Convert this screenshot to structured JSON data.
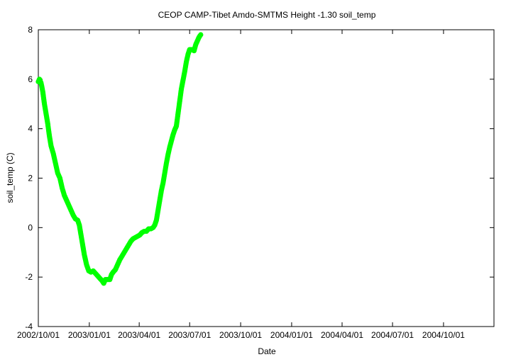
{
  "chart_data": {
    "type": "scatter",
    "title": "CEOP CAMP-Tibet Amdo-SMTMS Height -1.30 soil_temp",
    "xlabel": "Date",
    "ylabel": "soil_temp (C)",
    "xlim": [
      "2002/10/01",
      "2004/12/31"
    ],
    "ylim": [
      -4,
      8
    ],
    "x_ticks": [
      "2002/10/01",
      "2003/01/01",
      "2003/04/01",
      "2003/07/01",
      "2003/10/01",
      "2004/01/01",
      "2004/04/01",
      "2004/07/01",
      "2004/10/01"
    ],
    "y_ticks": [
      -4,
      -2,
      0,
      2,
      4,
      6,
      8
    ],
    "grid": false,
    "legend": "none",
    "series": [
      {
        "color": "#00ff00",
        "points": [
          [
            "2002/10/01",
            5.9
          ],
          [
            "2002/10/03",
            6.0
          ],
          [
            "2002/10/06",
            5.85
          ],
          [
            "2002/10/09",
            5.5
          ],
          [
            "2002/10/12",
            5.0
          ],
          [
            "2002/10/15",
            4.6
          ],
          [
            "2002/10/18",
            4.2
          ],
          [
            "2002/10/21",
            3.7
          ],
          [
            "2002/10/24",
            3.3
          ],
          [
            "2002/10/28",
            3.0
          ],
          [
            "2002/11/01",
            2.6
          ],
          [
            "2002/11/05",
            2.2
          ],
          [
            "2002/11/09",
            2.0
          ],
          [
            "2002/11/13",
            1.6
          ],
          [
            "2002/11/17",
            1.3
          ],
          [
            "2002/11/21",
            1.1
          ],
          [
            "2002/11/25",
            0.9
          ],
          [
            "2002/11/29",
            0.7
          ],
          [
            "2002/12/03",
            0.5
          ],
          [
            "2002/12/07",
            0.35
          ],
          [
            "2002/12/11",
            0.3
          ],
          [
            "2002/12/14",
            0.1
          ],
          [
            "2002/12/17",
            -0.3
          ],
          [
            "2002/12/20",
            -0.7
          ],
          [
            "2002/12/23",
            -1.1
          ],
          [
            "2002/12/27",
            -1.5
          ],
          [
            "2002/12/31",
            -1.75
          ],
          [
            "2003/01/04",
            -1.8
          ],
          [
            "2003/01/08",
            -1.75
          ],
          [
            "2003/01/12",
            -1.85
          ],
          [
            "2003/01/16",
            -1.95
          ],
          [
            "2003/01/20",
            -2.05
          ],
          [
            "2003/01/24",
            -2.15
          ],
          [
            "2003/01/27",
            -2.25
          ],
          [
            "2003/01/30",
            -2.1
          ],
          [
            "2003/02/03",
            -2.1
          ],
          [
            "2003/02/07",
            -2.1
          ],
          [
            "2003/02/10",
            -1.9
          ],
          [
            "2003/02/13",
            -1.8
          ],
          [
            "2003/02/17",
            -1.7
          ],
          [
            "2003/02/21",
            -1.5
          ],
          [
            "2003/02/25",
            -1.3
          ],
          [
            "2003/03/01",
            -1.15
          ],
          [
            "2003/03/05",
            -1.0
          ],
          [
            "2003/03/09",
            -0.85
          ],
          [
            "2003/03/13",
            -0.7
          ],
          [
            "2003/03/17",
            -0.55
          ],
          [
            "2003/03/21",
            -0.45
          ],
          [
            "2003/03/25",
            -0.4
          ],
          [
            "2003/03/29",
            -0.35
          ],
          [
            "2003/04/02",
            -0.3
          ],
          [
            "2003/04/06",
            -0.2
          ],
          [
            "2003/04/10",
            -0.15
          ],
          [
            "2003/04/14",
            -0.15
          ],
          [
            "2003/04/18",
            -0.05
          ],
          [
            "2003/04/22",
            -0.05
          ],
          [
            "2003/04/26",
            0.0
          ],
          [
            "2003/04/29",
            0.1
          ],
          [
            "2003/05/02",
            0.3
          ],
          [
            "2003/05/05",
            0.7
          ],
          [
            "2003/05/08",
            1.1
          ],
          [
            "2003/05/11",
            1.5
          ],
          [
            "2003/05/14",
            1.8
          ],
          [
            "2003/05/17",
            2.2
          ],
          [
            "2003/05/20",
            2.6
          ],
          [
            "2003/05/23",
            2.95
          ],
          [
            "2003/05/26",
            3.25
          ],
          [
            "2003/05/29",
            3.5
          ],
          [
            "2003/06/01",
            3.75
          ],
          [
            "2003/06/04",
            3.95
          ],
          [
            "2003/06/07",
            4.1
          ],
          [
            "2003/06/10",
            4.6
          ],
          [
            "2003/06/13",
            5.1
          ],
          [
            "2003/06/16",
            5.6
          ],
          [
            "2003/06/19",
            5.95
          ],
          [
            "2003/06/22",
            6.3
          ],
          [
            "2003/06/25",
            6.7
          ],
          [
            "2003/06/28",
            7.0
          ],
          [
            "2003/07/01",
            7.2
          ],
          [
            "2003/07/05",
            7.2
          ],
          [
            "2003/07/09",
            7.15
          ],
          [
            "2003/07/12",
            7.4
          ],
          [
            "2003/07/15",
            7.55
          ],
          [
            "2003/07/18",
            7.7
          ],
          [
            "2003/07/21",
            7.8
          ]
        ]
      }
    ]
  }
}
